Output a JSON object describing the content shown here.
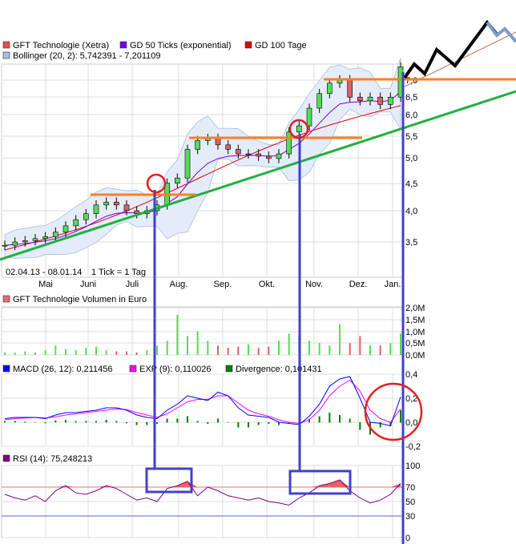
{
  "legend": {
    "price": "GFT Technologie (Xetra)",
    "gd50": "GD 50 Ticks (exponential)",
    "gd100": "GD 100 Tage",
    "bollinger": "Bollinger (20, 2): 5,742391  - 7,201109",
    "volume": "GFT Technologie Volumen in Euro",
    "macd": "MACD (26, 12): 0,211456",
    "exp": "EXP (9): 0,110026",
    "divergence": "Divergence: 0,101431",
    "rsi": "RSI (14): 75,248213"
  },
  "colors": {
    "price": "#e84c4c",
    "gd50": "#7a00e0",
    "gd100": "#e00000",
    "bollinger": "#a8bce0",
    "volume": "#e07070",
    "macd": "#0000ff",
    "exp": "#ff00ff",
    "divergence": "#008000",
    "rsi": "#800080",
    "up": "#55dd55",
    "down": "#e06060",
    "annot_orange": "#ff8020",
    "annot_green": "#20b040",
    "annot_blue": "#4040cc",
    "annot_red": "#e02020"
  },
  "date_range": "02.04.13 - 08.01.14",
  "tick_info": "1 Tick = 1 Tag",
  "chart_data": [
    {
      "type": "candlestick",
      "scale": "log",
      "y_ticks": [
        "7,0",
        "6,5",
        "6,0",
        "5,5",
        "5,0",
        "4,5",
        "4,0",
        "3,5"
      ],
      "x_ticks": [
        "Mai",
        "Juni",
        "Juli",
        "Aug.",
        "Sep.",
        "Okt.",
        "Nov.",
        "Dez.",
        "Jan."
      ],
      "close": [
        3.45,
        3.5,
        3.52,
        3.55,
        3.58,
        3.65,
        3.75,
        3.85,
        3.95,
        4.1,
        4.15,
        4.1,
        4.0,
        3.95,
        4.0,
        4.1,
        4.5,
        4.6,
        5.2,
        5.4,
        5.45,
        5.3,
        5.2,
        5.1,
        5.1,
        5.05,
        5.0,
        5.1,
        5.6,
        5.75,
        6.2,
        6.6,
        6.9,
        7.0,
        6.5,
        6.4,
        6.5,
        6.3,
        6.5,
        7.4
      ]
    },
    {
      "type": "bar",
      "name": "GFT Technologie Volumen in Euro",
      "y_ticks": [
        "2,0M",
        "1,5M",
        "1,0M",
        "0,5M",
        "0,0M"
      ],
      "ylim": [
        0,
        2
      ],
      "values": [
        0.1,
        0.1,
        0.15,
        0.1,
        0.2,
        0.4,
        0.25,
        0.2,
        0.3,
        0.35,
        0.2,
        0.15,
        0.15,
        0.1,
        0.2,
        0.4,
        0.6,
        1.7,
        0.8,
        1.0,
        0.6,
        0.4,
        0.3,
        0.35,
        0.45,
        0.3,
        0.35,
        0.6,
        0.9,
        0.8,
        0.6,
        0.5,
        0.4,
        1.3,
        0.5,
        0.8,
        0.4,
        0.4,
        0.5,
        0.9
      ]
    },
    {
      "type": "line",
      "y_ticks": [
        "0,4",
        "0,2",
        "0,0",
        "-0,2"
      ],
      "ylim": [
        -0.2,
        0.4
      ],
      "macd": [
        0.03,
        0.04,
        0.04,
        0.04,
        0.03,
        0.06,
        0.08,
        0.08,
        0.09,
        0.1,
        0.12,
        0.12,
        0.1,
        0.06,
        0.04,
        0.03,
        0.1,
        0.15,
        0.22,
        0.2,
        0.18,
        0.25,
        0.22,
        0.12,
        0.06,
        0.05,
        0.04,
        0.0,
        -0.01,
        -0.02,
        0.05,
        0.15,
        0.3,
        0.36,
        0.38,
        0.2,
        0.0,
        -0.01,
        -0.03,
        0.21
      ],
      "exp": [
        0.02,
        0.03,
        0.035,
        0.04,
        0.035,
        0.045,
        0.06,
        0.07,
        0.08,
        0.09,
        0.1,
        0.11,
        0.105,
        0.08,
        0.06,
        0.04,
        0.07,
        0.12,
        0.17,
        0.19,
        0.19,
        0.22,
        0.22,
        0.16,
        0.1,
        0.07,
        0.05,
        0.02,
        0.0,
        -0.01,
        0.02,
        0.1,
        0.22,
        0.3,
        0.35,
        0.26,
        0.1,
        0.03,
        0.0,
        0.11
      ],
      "divergence": [
        0.01,
        0.01,
        0.005,
        0.0,
        -0.005,
        0.015,
        0.02,
        0.01,
        0.01,
        0.01,
        0.02,
        0.01,
        -0.005,
        -0.02,
        -0.02,
        -0.01,
        0.03,
        0.03,
        0.05,
        0.01,
        -0.01,
        0.03,
        0.0,
        -0.04,
        -0.04,
        -0.02,
        -0.01,
        -0.02,
        -0.01,
        -0.01,
        0.03,
        0.05,
        0.08,
        0.06,
        0.03,
        -0.06,
        -0.1,
        -0.04,
        -0.03,
        0.1
      ]
    },
    {
      "type": "line",
      "name": "RSI (14)",
      "y_ticks": [
        "100",
        "70",
        "50",
        "30",
        "0"
      ],
      "ylim": [
        0,
        100
      ],
      "values": [
        60,
        55,
        52,
        58,
        50,
        65,
        72,
        62,
        60,
        65,
        72,
        68,
        60,
        52,
        55,
        50,
        68,
        72,
        78,
        58,
        70,
        65,
        58,
        55,
        52,
        55,
        50,
        48,
        45,
        55,
        62,
        72,
        75,
        80,
        65,
        55,
        48,
        52,
        60,
        75
      ]
    }
  ]
}
